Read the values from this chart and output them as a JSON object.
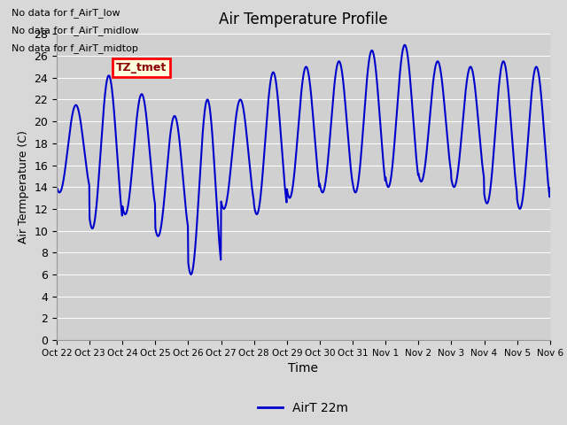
{
  "title": "Air Temperature Profile",
  "xlabel": "Time",
  "ylabel": "Air Termperature (C)",
  "ylim": [
    0,
    28
  ],
  "yticks": [
    0,
    2,
    4,
    6,
    8,
    10,
    12,
    14,
    16,
    18,
    20,
    22,
    24,
    26,
    28
  ],
  "line_color": "#0000cc",
  "line_width": 1.5,
  "fig_bg_color": "#d8d8d8",
  "ax_bg_color": "#d0d0d0",
  "legend_label": "AirT 22m",
  "text_annotations": [
    "No data for f_AirT_low",
    "No data for f_AirT_midlow",
    "No data for f_AirT_midtop"
  ],
  "tz_label": "TZ_tmet",
  "x_tick_labels": [
    "Oct 22",
    "Oct 23",
    "Oct 24",
    "Oct 25",
    "Oct 26",
    "Oct 27",
    "Oct 28",
    "Oct 29",
    "Oct 30",
    "Oct 31",
    "Nov 1",
    "Nov 2",
    "Nov 3",
    "Nov 4",
    "Nov 5",
    "Nov 6"
  ],
  "num_days": 16,
  "day_means": [
    17.5,
    17.2,
    17.0,
    15.0,
    14.0,
    17.0,
    18.0,
    19.0,
    19.5,
    20.0,
    20.5,
    20.0,
    19.5,
    19.0,
    18.5,
    16.5
  ],
  "day_amps": [
    4.0,
    7.0,
    5.5,
    5.5,
    8.0,
    5.0,
    6.5,
    6.0,
    6.0,
    6.5,
    6.5,
    5.5,
    5.5,
    6.5,
    6.5,
    3.0
  ]
}
